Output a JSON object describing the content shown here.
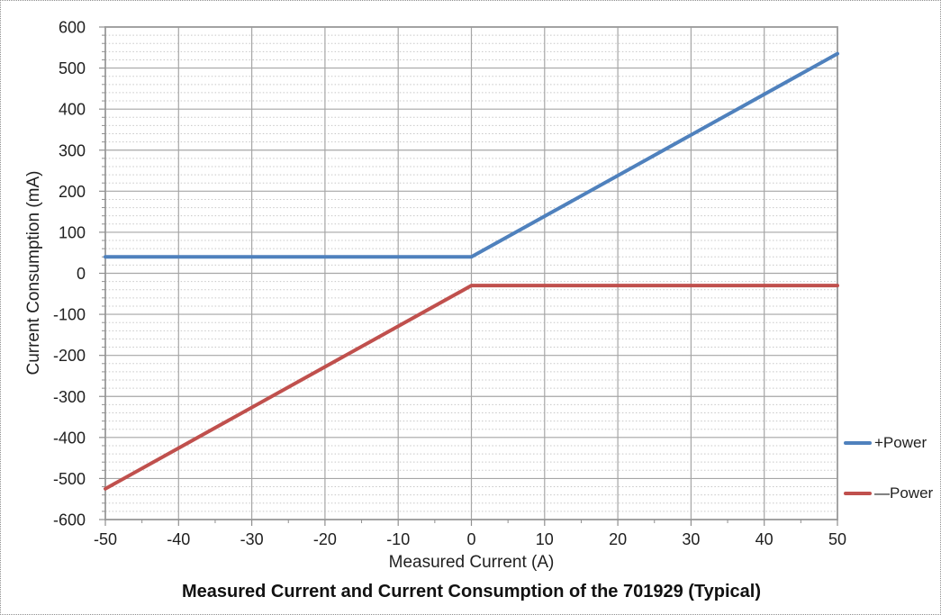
{
  "chart_data": {
    "type": "line",
    "title": "Measured Current and Current Consumption of the 701929 (Typical)",
    "xlabel": "Measured Current (A)",
    "ylabel": "Current Consumption (mA)",
    "xlim": [
      -50,
      50
    ],
    "ylim": [
      -600,
      600
    ],
    "x_ticks": [
      -50,
      -40,
      -30,
      -20,
      -10,
      0,
      10,
      20,
      30,
      40,
      50
    ],
    "y_ticks": [
      600,
      500,
      400,
      300,
      200,
      100,
      0,
      -100,
      -200,
      -300,
      -400,
      -500,
      -600
    ],
    "x_major_tick": 10,
    "x_minor_tick": 5,
    "y_major_tick": 100,
    "y_minor_tick": 20,
    "grid": {
      "major": "solid",
      "minor": "dotted-horizontal-only"
    },
    "legend_position": "right",
    "series": [
      {
        "name": "+Power",
        "color": "#4F81BD",
        "points": [
          [
            -50,
            40
          ],
          [
            0,
            40
          ],
          [
            50,
            535
          ]
        ]
      },
      {
        "name": "—Power",
        "color": "#C0504D",
        "points": [
          [
            -50,
            -525
          ],
          [
            0,
            -30
          ],
          [
            50,
            -30
          ]
        ]
      }
    ]
  },
  "colors": {
    "background": "#ffffff",
    "plot_border": "#9b9b9b",
    "grid_major": "#a6a6a6",
    "grid_minor": "#c8c8c8",
    "axis_tick": "#8f8f8f",
    "text": "#1f1f1f"
  }
}
